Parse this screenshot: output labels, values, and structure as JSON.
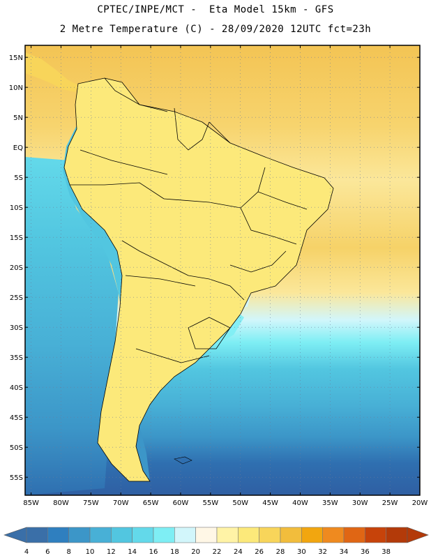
{
  "header": {
    "title_line1": "CPTEC/INPE/MCT -  Eta Model 15km - GFS",
    "title_line2": "2 Metre Temperature (C) - 28/09/2020 12UTC fct=23h"
  },
  "map": {
    "lon_range": [
      -86,
      -20
    ],
    "lat_range": [
      -58,
      17
    ],
    "lat_labels": [
      "15N",
      "10N",
      "5N",
      "EQ",
      "5S",
      "10S",
      "15S",
      "20S",
      "25S",
      "30S",
      "35S",
      "40S",
      "45S",
      "50S",
      "55S"
    ],
    "lat_values": [
      15,
      10,
      5,
      0,
      -5,
      -10,
      -15,
      -20,
      -25,
      -30,
      -35,
      -40,
      -45,
      -50,
      -55
    ],
    "lon_labels": [
      "85W",
      "80W",
      "75W",
      "70W",
      "65W",
      "60W",
      "55W",
      "50W",
      "45W",
      "40W",
      "35W",
      "30W",
      "25W",
      "20W"
    ],
    "lon_values": [
      -85,
      -80,
      -75,
      -70,
      -65,
      -60,
      -55,
      -50,
      -45,
      -40,
      -35,
      -30,
      -25,
      -20
    ]
  },
  "colorbar": {
    "labels": [
      "4",
      "6",
      "8",
      "10",
      "12",
      "14",
      "16",
      "18",
      "20",
      "22",
      "24",
      "26",
      "28",
      "30",
      "32",
      "34",
      "36",
      "38"
    ],
    "colors": [
      "#3a6fa8",
      "#2f7fbf",
      "#3c96c8",
      "#48b0d6",
      "#52c6e0",
      "#63d9ea",
      "#7eeef4",
      "#d2f6fb",
      "#fff7e6",
      "#fff3a6",
      "#fce97a",
      "#f8d55a",
      "#f2bd3c",
      "#f2a60f",
      "#ef8a1f",
      "#e06614",
      "#c7430a",
      "#b33a09"
    ],
    "low_arrow_color": "#3a6fa8",
    "high_arrow_color": "#b33a09"
  }
}
